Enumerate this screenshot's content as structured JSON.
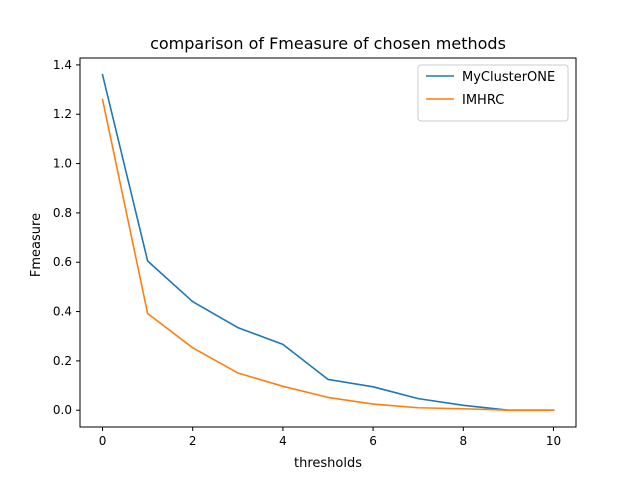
{
  "chart_data": {
    "type": "line",
    "title": "comparison of Fmeasure of chosen methods",
    "xlabel": "thresholds",
    "ylabel": "Fmeasure",
    "x": [
      0,
      1,
      2,
      3,
      4,
      5,
      6,
      7,
      8,
      9,
      10
    ],
    "xlim": [
      -0.5,
      10.5
    ],
    "ylim": [
      -0.068,
      1.428
    ],
    "xticks": [
      0,
      2,
      4,
      6,
      8,
      10
    ],
    "xtick_labels": [
      "0",
      "2",
      "4",
      "6",
      "8",
      "10"
    ],
    "yticks": [
      0.0,
      0.2,
      0.4,
      0.6,
      0.8,
      1.0,
      1.2,
      1.4
    ],
    "ytick_labels": [
      "0.0",
      "0.2",
      "0.4",
      "0.6",
      "0.8",
      "1.0",
      "1.2",
      "1.4"
    ],
    "grid": false,
    "legend_position": "top-right",
    "series": [
      {
        "name": "MyClusterONE",
        "color": "#1f77b4",
        "values": [
          1.36,
          0.605,
          0.44,
          0.335,
          0.267,
          0.125,
          0.095,
          0.047,
          0.02,
          0.0,
          0.0
        ]
      },
      {
        "name": "IMHRC",
        "color": "#ff7f0e",
        "values": [
          1.26,
          0.392,
          0.253,
          0.151,
          0.097,
          0.052,
          0.025,
          0.01,
          0.006,
          0.0,
          0.0
        ]
      }
    ]
  }
}
